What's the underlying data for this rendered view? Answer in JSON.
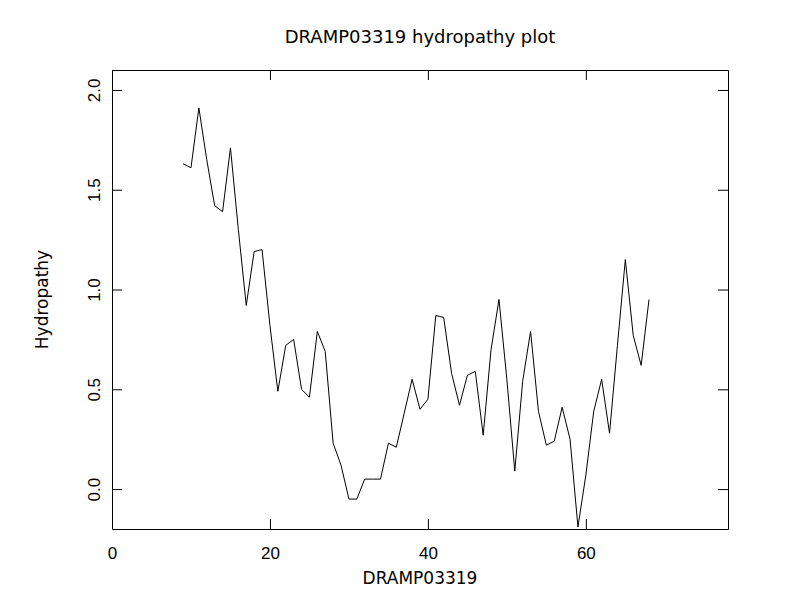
{
  "chart_data": {
    "type": "line",
    "title": "DRAMP03319 hydropathy plot",
    "x_label": "DRAMP03319",
    "y_label": "Hydropathy",
    "color": "#000000",
    "x": [
      9,
      10,
      11,
      12,
      13,
      14,
      15,
      16,
      17,
      18,
      19,
      20,
      21,
      22,
      23,
      24,
      25,
      26,
      27,
      28,
      29,
      30,
      31,
      32,
      33,
      34,
      35,
      36,
      37,
      38,
      39,
      40,
      41,
      42,
      43,
      44,
      45,
      46,
      47,
      48,
      49,
      50,
      51,
      52,
      53,
      54,
      55,
      56,
      57,
      58,
      59,
      60,
      61,
      62,
      63,
      64,
      65,
      66,
      67,
      68
    ],
    "values": [
      1.63,
      1.61,
      1.91,
      1.65,
      1.42,
      1.39,
      1.71,
      1.3,
      0.92,
      1.19,
      1.2,
      0.82,
      0.49,
      0.72,
      0.75,
      0.5,
      0.46,
      0.79,
      0.69,
      0.23,
      0.12,
      -0.05,
      -0.05,
      0.05,
      0.05,
      0.05,
      0.23,
      0.21,
      0.38,
      0.55,
      0.4,
      0.45,
      0.87,
      0.86,
      0.58,
      0.42,
      0.57,
      0.59,
      0.27,
      0.7,
      0.95,
      0.55,
      0.09,
      0.54,
      0.79,
      0.39,
      0.22,
      0.24,
      0.41,
      0.25,
      -0.19,
      0.07,
      0.39,
      0.55,
      0.28,
      0.72,
      1.15,
      0.77,
      0.62,
      0.95
    ],
    "xlim": [
      0,
      78
    ],
    "xticks": [
      0,
      20,
      40,
      60
    ],
    "ylim": [
      -0.2,
      2.1
    ],
    "yticks": [
      {
        "value": 0,
        "label": "0.0"
      },
      0.5,
      {
        "value": 1,
        "label": "1.0"
      },
      1.5,
      {
        "value": 2,
        "label": "2.0"
      }
    ],
    "grid": false
  }
}
